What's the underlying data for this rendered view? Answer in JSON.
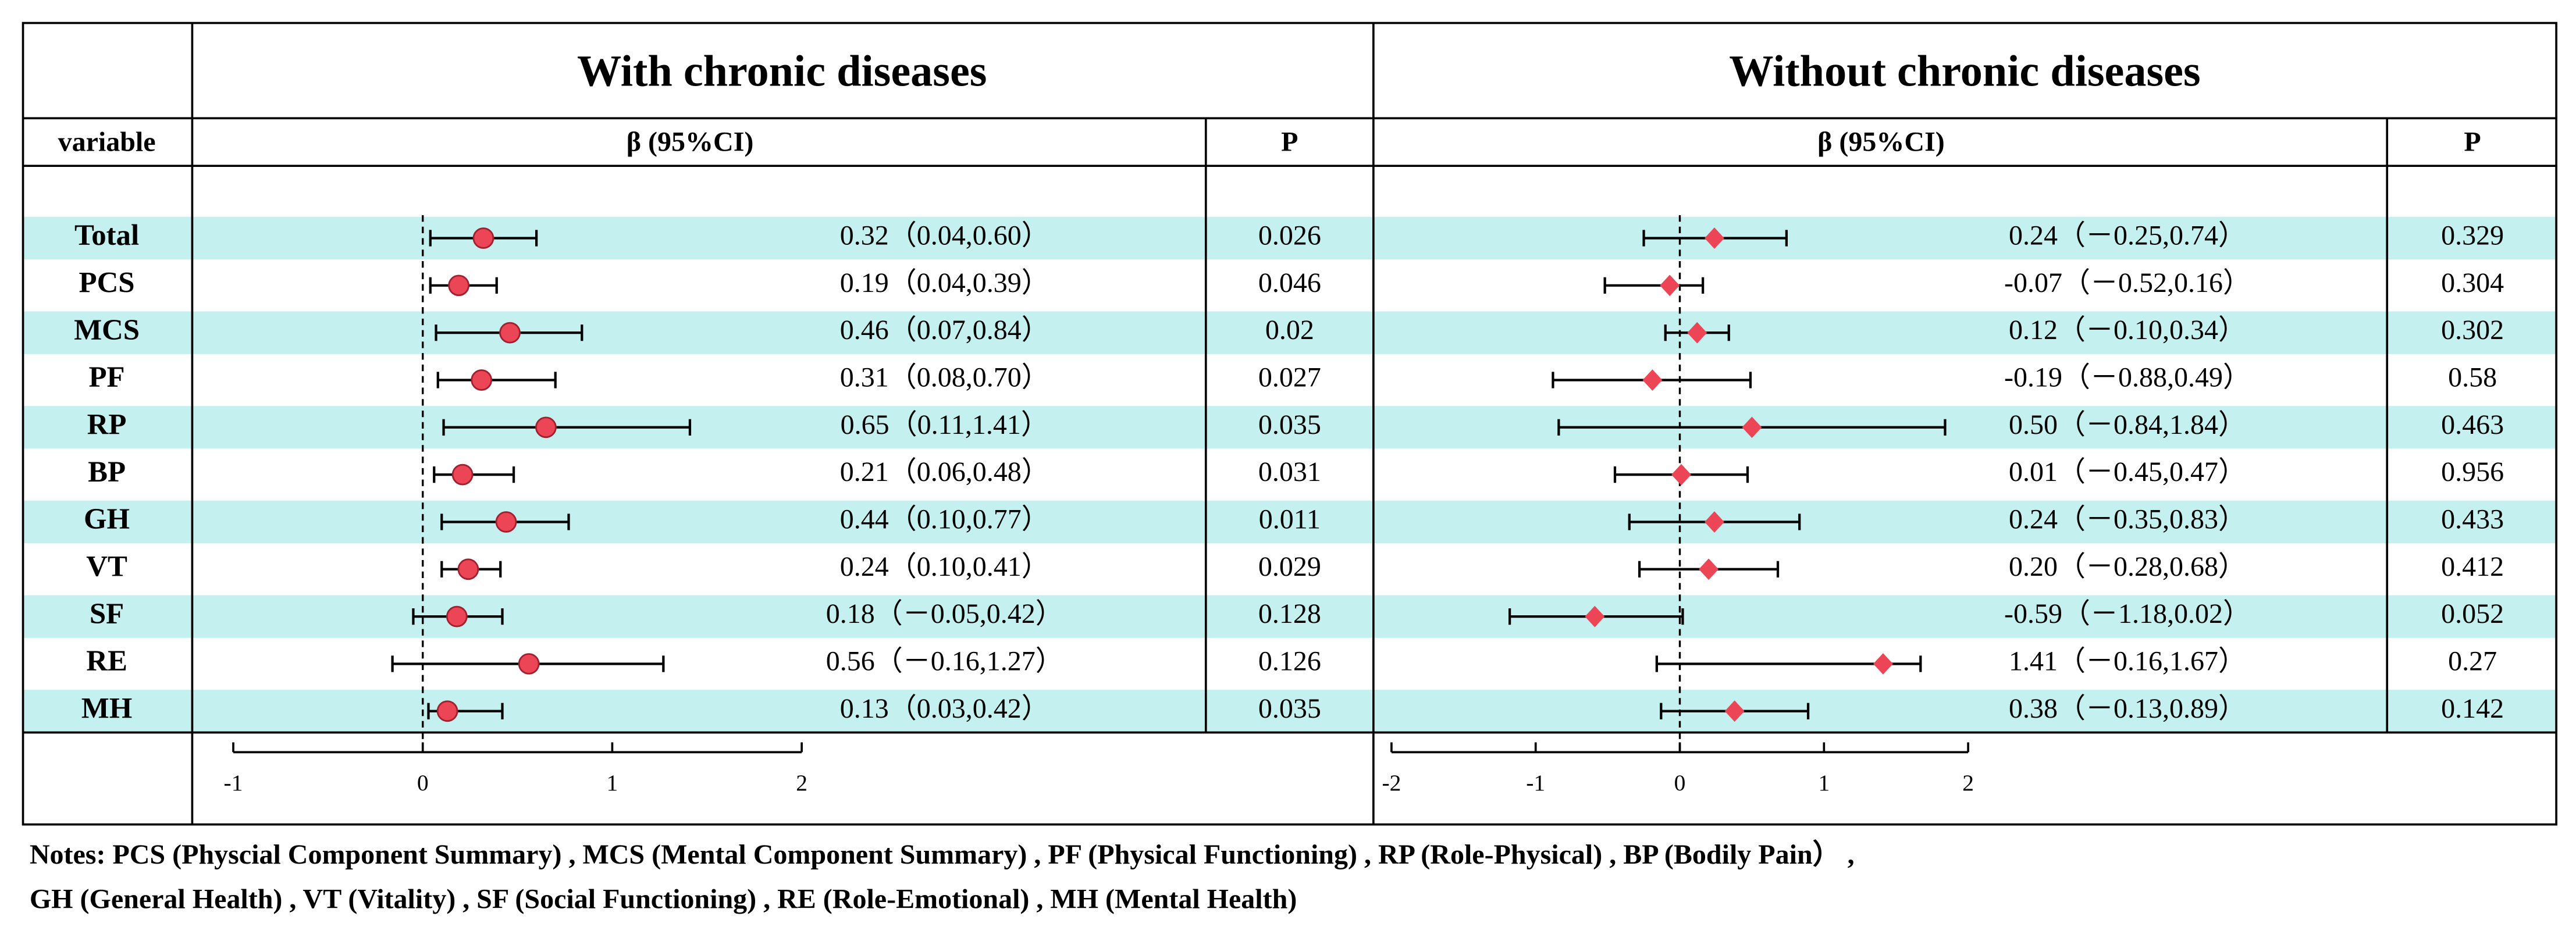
{
  "chart_data": {
    "type": "forest",
    "column_header": "variable",
    "estimate_header": "β (95%CI)",
    "p_header": "P",
    "categories": [
      "Total",
      "PCS",
      "MCS",
      "PF",
      "RP",
      "BP",
      "GH",
      "VT",
      "SF",
      "RE",
      "MH"
    ],
    "band_color": "#c4f1ef",
    "panels": [
      {
        "title": "With chronic diseases",
        "marker": "circle",
        "color": "#ec4656",
        "values": [
          0.32,
          0.19,
          0.46,
          0.31,
          0.65,
          0.21,
          0.44,
          0.24,
          0.18,
          0.56,
          0.13
        ],
        "lower": [
          0.04,
          0.04,
          0.07,
          0.08,
          0.11,
          0.06,
          0.1,
          0.1,
          -0.05,
          -0.16,
          0.03
        ],
        "upper": [
          0.6,
          0.39,
          0.84,
          0.7,
          1.41,
          0.48,
          0.77,
          0.41,
          0.42,
          1.27,
          0.42
        ],
        "value_labels": [
          "0.32（0.04,0.60）",
          "0.19（0.04,0.39）",
          "0.46（0.07,0.84）",
          "0.31（0.08,0.70）",
          "0.65（0.11,1.41）",
          "0.21（0.06,0.48）",
          "0.44（0.10,0.77）",
          "0.24（0.10,0.41）",
          "0.18（－0.05,0.42）",
          "0.56（－0.16,1.27）",
          "0.13（0.03,0.42）"
        ],
        "p": [
          0.026,
          0.046,
          0.02,
          0.027,
          0.035,
          0.031,
          0.011,
          0.029,
          0.128,
          0.126,
          0.035
        ],
        "xlim": [
          -1,
          2
        ],
        "xticks": [
          -1,
          0,
          1,
          2
        ]
      },
      {
        "title": "Without chronic diseases",
        "marker": "diamond",
        "color": "#ec4656",
        "values": [
          0.24,
          -0.07,
          0.12,
          -0.19,
          0.5,
          0.01,
          0.24,
          0.2,
          -0.59,
          1.41,
          0.38
        ],
        "lower": [
          -0.25,
          -0.52,
          -0.1,
          -0.88,
          -0.84,
          -0.45,
          -0.35,
          -0.28,
          -1.18,
          -0.16,
          -0.13
        ],
        "upper": [
          0.74,
          0.16,
          0.34,
          0.49,
          1.84,
          0.47,
          0.83,
          0.68,
          0.02,
          1.67,
          0.89
        ],
        "value_labels": [
          "0.24（－0.25,0.74）",
          "-0.07（－0.52,0.16）",
          "0.12（－0.10,0.34）",
          "-0.19（－0.88,0.49）",
          "0.50（－0.84,1.84）",
          "0.01（－0.45,0.47）",
          "0.24（－0.35,0.83）",
          "0.20（－0.28,0.68）",
          "-0.59（－1.18,0.02）",
          "1.41（－0.16,1.67）",
          "0.38（－0.13,0.89）"
        ],
        "p": [
          0.329,
          0.304,
          0.302,
          0.58,
          0.463,
          0.956,
          0.433,
          0.412,
          0.052,
          0.27,
          0.142
        ],
        "xlim": [
          -2,
          2
        ],
        "xticks": [
          -2,
          -1,
          0,
          1,
          2
        ]
      }
    ]
  },
  "notes": [
    "Notes: PCS (Physcial Component Summary) , MCS (Mental Component Summary) , PF (Physical Functioning) , RP (Role-Physical) , BP (Bodily Pain） ,",
    "GH (General Health) , VT (Vitality) , SF (Social Functioning) , RE (Role-Emotional) , MH (Mental Health)"
  ]
}
